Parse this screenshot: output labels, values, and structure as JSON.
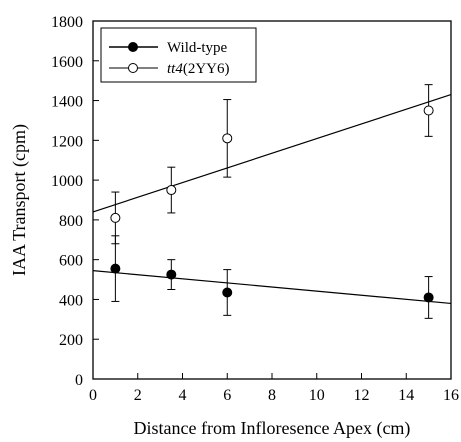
{
  "chart_data": {
    "type": "scatter",
    "xlabel": "Distance from Infloresence Apex (cm)",
    "ylabel": "IAA Transport (cpm)",
    "xlim": [
      0,
      16
    ],
    "ylim": [
      0,
      1800
    ],
    "xticks": [
      "0",
      "2",
      "4",
      "6",
      "8",
      "10",
      "12",
      "14",
      "16"
    ],
    "yticks": [
      "0",
      "200",
      "400",
      "600",
      "800",
      "1000",
      "1200",
      "1400",
      "1600",
      "1800"
    ],
    "legend_position": "top-left",
    "series": [
      {
        "name": "Wild-type",
        "marker": "filled-circle",
        "color": "#000000",
        "points": [
          {
            "x": 1,
            "y": 555,
            "err": 165
          },
          {
            "x": 3.5,
            "y": 525,
            "err": 75
          },
          {
            "x": 6,
            "y": 435,
            "err": 115
          },
          {
            "x": 15,
            "y": 410,
            "err": 105
          }
        ],
        "fit": [
          [
            0,
            545
          ],
          [
            16,
            380
          ]
        ]
      },
      {
        "name_prefix": "tt4",
        "name_suffix": "(2YY6)",
        "marker": "open-circle",
        "color": "#000000",
        "points": [
          {
            "x": 1,
            "y": 810,
            "err": 130
          },
          {
            "x": 3.5,
            "y": 950,
            "err": 115
          },
          {
            "x": 6,
            "y": 1210,
            "err": 195
          },
          {
            "x": 15,
            "y": 1350,
            "err": 130
          }
        ],
        "fit": [
          [
            0,
            840
          ],
          [
            16,
            1430
          ]
        ]
      }
    ]
  }
}
